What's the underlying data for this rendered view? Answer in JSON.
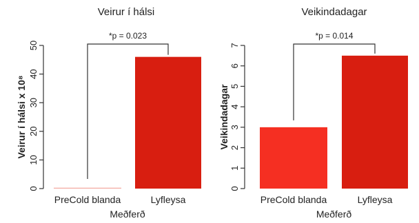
{
  "chart_data": [
    {
      "type": "bar",
      "title": "Veirur í hálsi",
      "ylabel": "Veirur í hálsi x 10⁸",
      "xlabel": "Meðferð",
      "categories": [
        "PreCold blanda",
        "Lyfleysa"
      ],
      "values": [
        0.3,
        46
      ],
      "ylim": [
        0,
        50
      ],
      "yticks": [
        0,
        10,
        20,
        30,
        40,
        50
      ],
      "colors": [
        "#f4a8a0",
        "#d81e10"
      ],
      "significance": "*p = 0.023",
      "grid": false
    },
    {
      "type": "bar",
      "title": "Veikindadagar",
      "ylabel": "Veikindadagar",
      "xlabel": "Meðferð",
      "categories": [
        "PreCold blanda",
        "Lyfleysa"
      ],
      "values": [
        3.0,
        6.5
      ],
      "ylim": [
        0,
        7
      ],
      "yticks": [
        0,
        1,
        2,
        3,
        4,
        5,
        6,
        7
      ],
      "colors": [
        "#f52f22",
        "#d81e10"
      ],
      "significance": "*p = 0.014",
      "grid": false
    }
  ]
}
